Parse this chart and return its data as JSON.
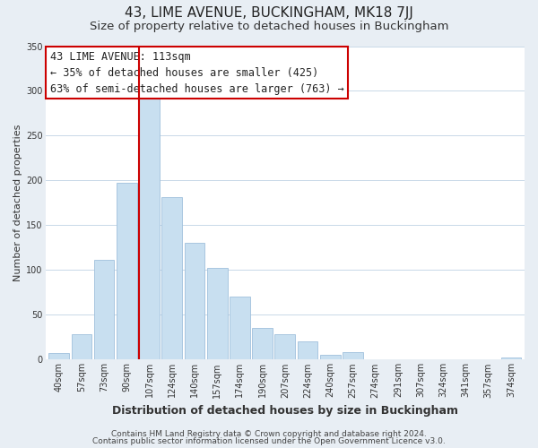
{
  "title": "43, LIME AVENUE, BUCKINGHAM, MK18 7JJ",
  "subtitle": "Size of property relative to detached houses in Buckingham",
  "xlabel": "Distribution of detached houses by size in Buckingham",
  "ylabel": "Number of detached properties",
  "bar_labels": [
    "40sqm",
    "57sqm",
    "73sqm",
    "90sqm",
    "107sqm",
    "124sqm",
    "140sqm",
    "157sqm",
    "174sqm",
    "190sqm",
    "207sqm",
    "224sqm",
    "240sqm",
    "257sqm",
    "274sqm",
    "291sqm",
    "307sqm",
    "324sqm",
    "341sqm",
    "357sqm",
    "374sqm"
  ],
  "bar_values": [
    7,
    28,
    111,
    197,
    295,
    181,
    130,
    102,
    70,
    35,
    28,
    20,
    5,
    8,
    0,
    0,
    0,
    0,
    0,
    0,
    2
  ],
  "bar_color": "#c8dff0",
  "bar_edge_color": "#a0c0dc",
  "highlight_bar_index": 4,
  "highlight_line_color": "#cc0000",
  "ylim": [
    0,
    350
  ],
  "yticks": [
    0,
    50,
    100,
    150,
    200,
    250,
    300,
    350
  ],
  "annotation_text": "43 LIME AVENUE: 113sqm\n← 35% of detached houses are smaller (425)\n63% of semi-detached houses are larger (763) →",
  "annotation_box_edge": "#cc0000",
  "footer1": "Contains HM Land Registry data © Crown copyright and database right 2024.",
  "footer2": "Contains public sector information licensed under the Open Government Licence v3.0.",
  "background_color": "#e8eef4",
  "plot_bg_color": "#ffffff",
  "grid_color": "#c8d8e8",
  "title_fontsize": 11,
  "subtitle_fontsize": 9.5,
  "xlabel_fontsize": 9,
  "ylabel_fontsize": 8,
  "tick_fontsize": 7,
  "annotation_fontsize": 8.5,
  "footer_fontsize": 6.5
}
